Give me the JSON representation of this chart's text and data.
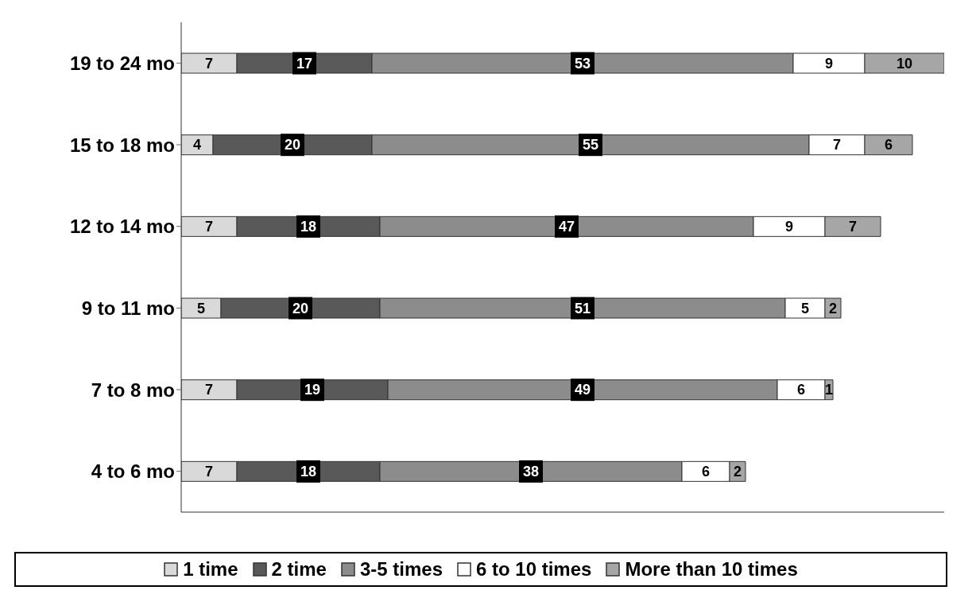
{
  "chart_data": {
    "type": "bar",
    "orientation": "horizontal",
    "stacked": true,
    "categories": [
      "19 to 24 mo",
      "15 to 18 mo",
      "12 to 14 mo",
      "9 to 11 mo",
      "7 to 8 mo",
      "4 to 6 mo"
    ],
    "series": [
      {
        "name": "1 time",
        "color": "#d9d9d9",
        "values": [
          7,
          4,
          7,
          5,
          7,
          7
        ]
      },
      {
        "name": "2 time",
        "color": "#595959",
        "values": [
          17,
          20,
          18,
          20,
          19,
          18
        ]
      },
      {
        "name": "3-5 times",
        "color": "#8c8c8c",
        "values": [
          53,
          55,
          47,
          51,
          49,
          38
        ]
      },
      {
        "name": "6 to 10 times",
        "color": "#ffffff",
        "values": [
          9,
          7,
          9,
          5,
          6,
          6
        ]
      },
      {
        "name": "More than 10 times",
        "color": "#a6a6a6",
        "values": [
          10,
          6,
          7,
          2,
          1,
          2
        ]
      }
    ],
    "tick_labels": "y",
    "legend": "bottom",
    "data_labels": true
  }
}
